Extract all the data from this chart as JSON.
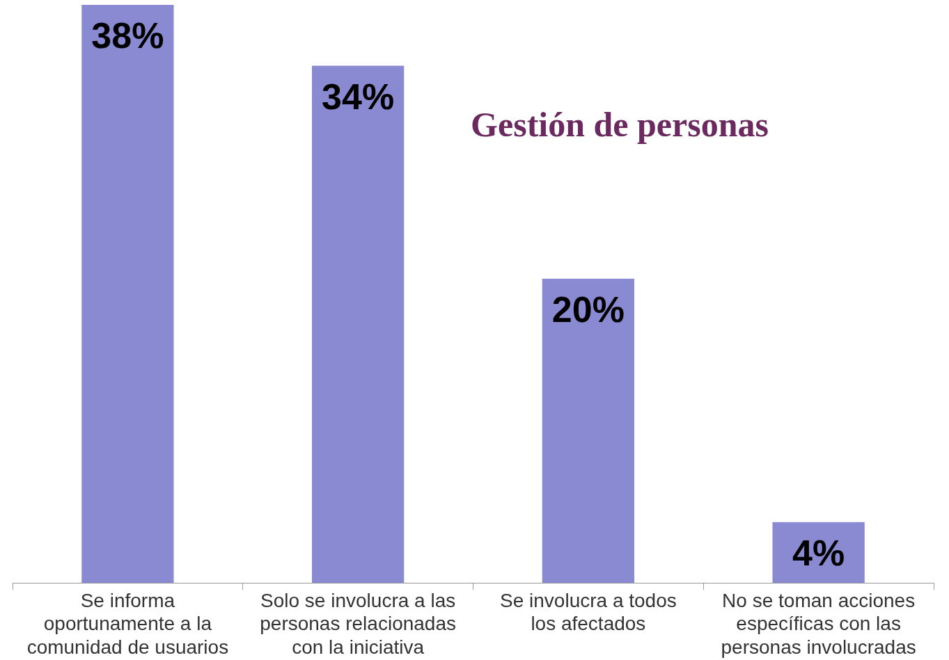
{
  "chart_data": {
    "type": "bar",
    "title": "Gestión de personas",
    "categories": [
      "Se informa oportunamente a la comunidad de usuarios",
      "Solo se involucra a las personas relacionadas con la iniciativa",
      "Se involucra a todos los afectados",
      "No se toman acciones específicas con las personas involucradas"
    ],
    "values": [
      38,
      34,
      20,
      4
    ],
    "value_labels": [
      "38%",
      "34%",
      "20%",
      "4%"
    ],
    "color": "#8a8ad2",
    "ylim": [
      0,
      38
    ],
    "tick_labels": "x",
    "grid": false,
    "legend": false
  }
}
